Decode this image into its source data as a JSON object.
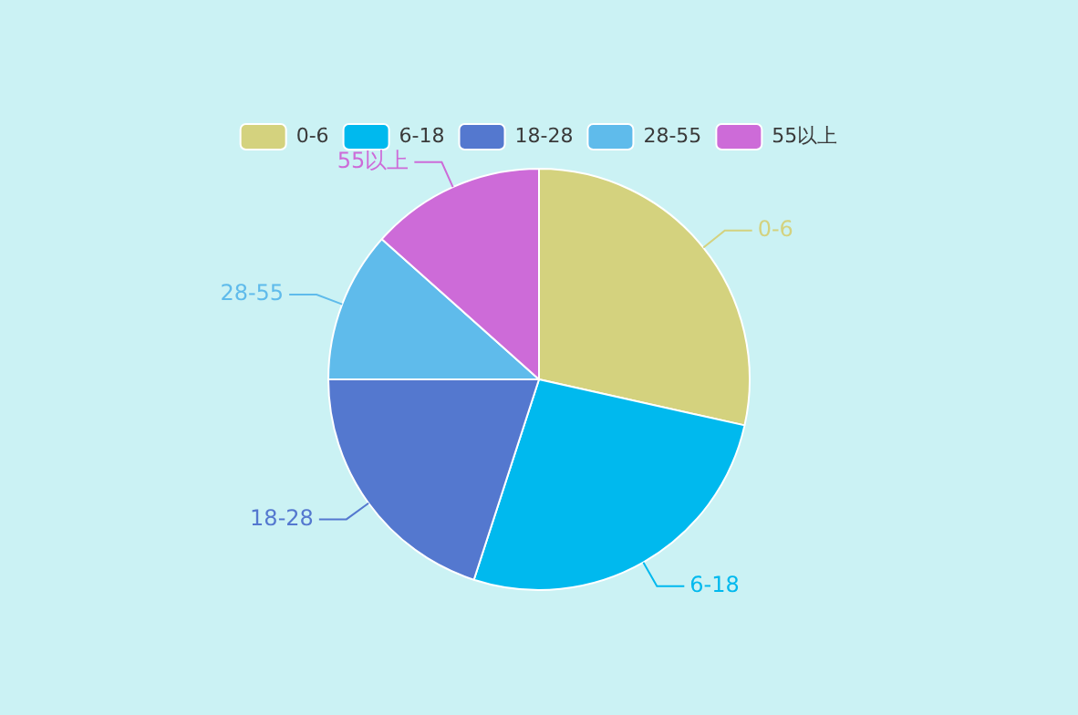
{
  "chart_data": {
    "type": "pie",
    "categories": [
      "0-6",
      "6-18",
      "18-28",
      "28-55",
      "55以上"
    ],
    "values": [
      28.5,
      26.5,
      20,
      11.6,
      13.4
    ],
    "colors": [
      "#d4d27e",
      "#00b9ee",
      "#5478cf",
      "#5fbbeb",
      "#cd6bd8"
    ],
    "legend": "top"
  }
}
